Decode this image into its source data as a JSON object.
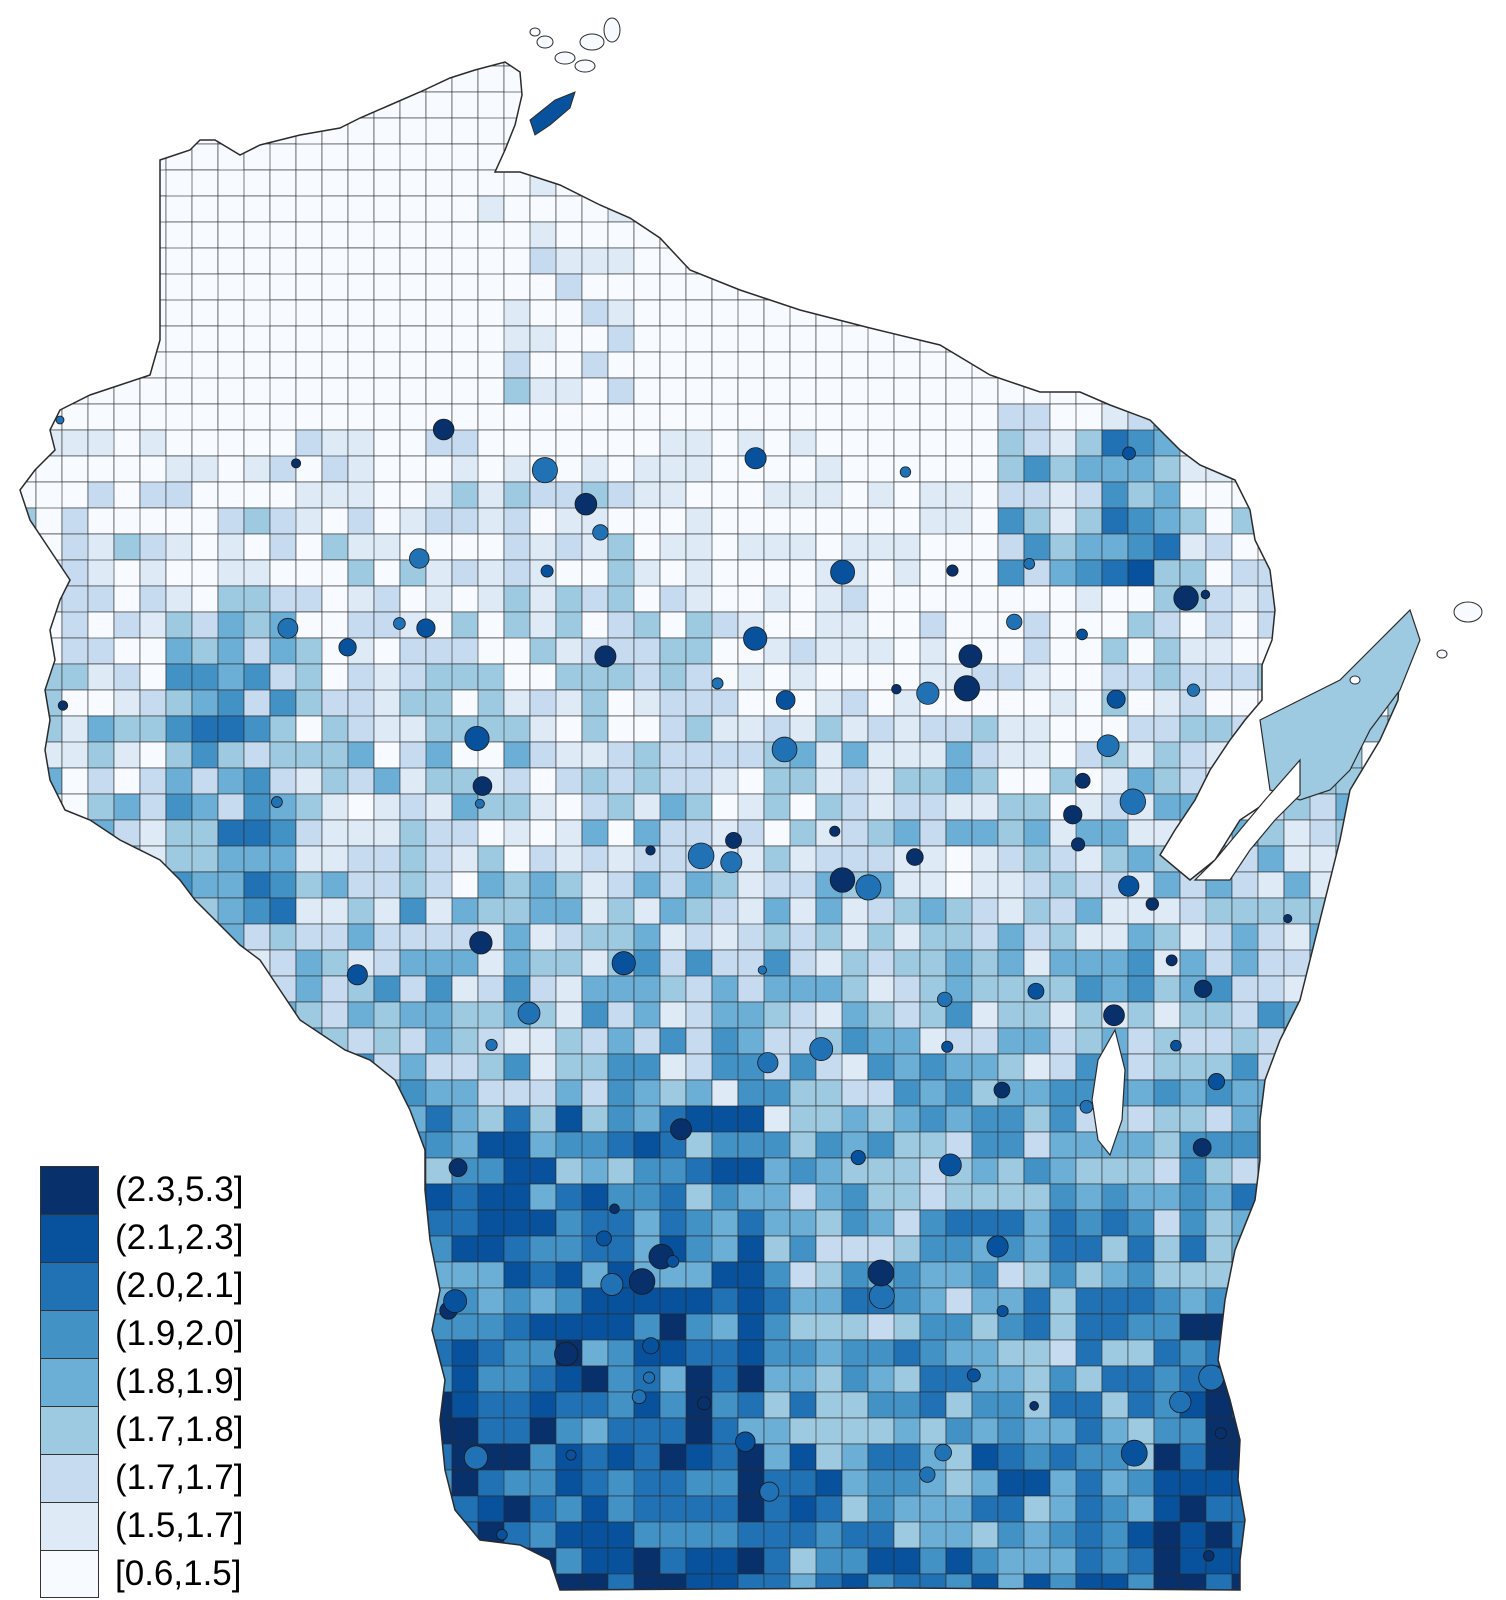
{
  "map": {
    "region": "Wisconsin",
    "description_type": "choropleth",
    "palette": [
      "#f7fbff",
      "#deebf7",
      "#c6dbef",
      "#9ecae1",
      "#6baed6",
      "#4292c6",
      "#2171b5",
      "#08519c",
      "#08306b"
    ],
    "border_color": "#2b2b2b"
  },
  "legend": {
    "items": [
      {
        "label": "(2.3,5.3]",
        "color": "#08306b"
      },
      {
        "label": "(2.1,2.3]",
        "color": "#08519c"
      },
      {
        "label": "(2.0,2.1]",
        "color": "#2171b5"
      },
      {
        "label": "(1.9,2.0]",
        "color": "#4292c6"
      },
      {
        "label": "(1.8,1.9]",
        "color": "#6baed6"
      },
      {
        "label": "(1.7,1.8]",
        "color": "#9ecae1"
      },
      {
        "label": "(1.7,1.7]",
        "color": "#c6dbef"
      },
      {
        "label": "(1.5,1.7]",
        "color": "#deebf7"
      },
      {
        "label": "[0.6,1.5]",
        "color": "#f7fbff"
      }
    ]
  }
}
